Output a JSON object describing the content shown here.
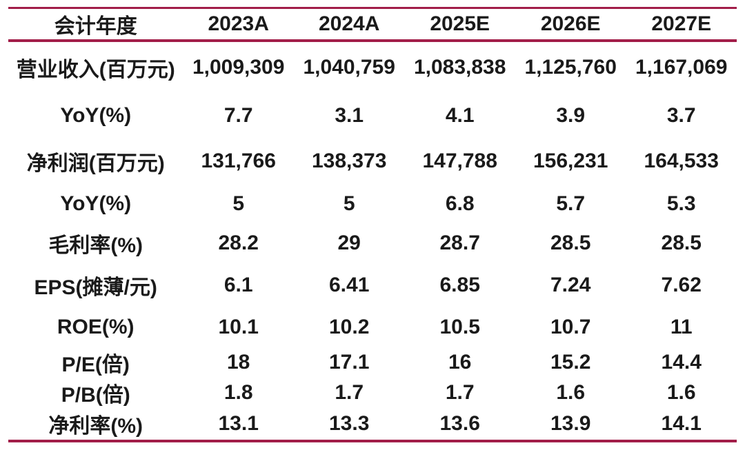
{
  "colors": {
    "accent_rule": "#A21E49",
    "text": "#1A1A1A",
    "background": "#FFFFFF"
  },
  "chart_data": {
    "type": "table",
    "title": "",
    "header": {
      "label": "会计年度",
      "columns": [
        "2023A",
        "2024A",
        "2025E",
        "2026E",
        "2027E"
      ]
    },
    "rows": [
      {
        "label": "营业收入(百万元)",
        "values": [
          "1,009,309",
          "1,040,759",
          "1,083,838",
          "1,125,760",
          "1,167,069"
        ]
      },
      {
        "label": "YoY(%)",
        "values": [
          "7.7",
          "3.1",
          "4.1",
          "3.9",
          "3.7"
        ]
      },
      {
        "label": "净利润(百万元)",
        "values": [
          "131,766",
          "138,373",
          "147,788",
          "156,231",
          "164,533"
        ]
      },
      {
        "label": "YoY(%)",
        "values": [
          "5",
          "5",
          "6.8",
          "5.7",
          "5.3"
        ]
      },
      {
        "label": "毛利率(%)",
        "values": [
          "28.2",
          "29",
          "28.7",
          "28.5",
          "28.5"
        ]
      },
      {
        "label": "EPS(摊薄/元)",
        "values": [
          "6.1",
          "6.41",
          "6.85",
          "7.24",
          "7.62"
        ]
      },
      {
        "label": "ROE(%)",
        "values": [
          "10.1",
          "10.2",
          "10.5",
          "10.7",
          "11"
        ]
      },
      {
        "label": "P/E(倍)",
        "values": [
          "18",
          "17.1",
          "16",
          "15.2",
          "14.4"
        ]
      },
      {
        "label": "P/B(倍)",
        "values": [
          "1.8",
          "1.7",
          "1.7",
          "1.6",
          "1.6"
        ]
      },
      {
        "label": "净利率(%)",
        "values": [
          "13.1",
          "13.3",
          "13.6",
          "13.9",
          "14.1"
        ]
      }
    ]
  }
}
